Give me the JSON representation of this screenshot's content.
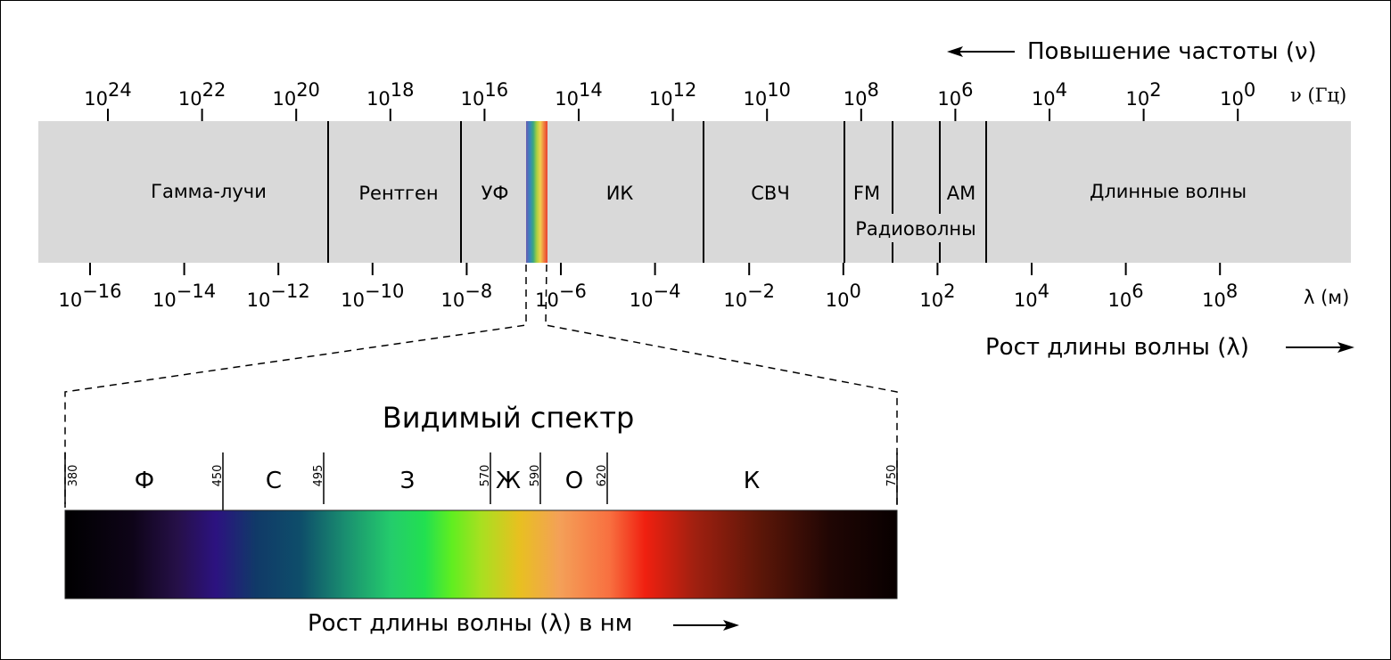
{
  "frequency_header": "Повышение частоты (ν)",
  "frequency_unit": "ν (Гц)",
  "frequency_exponents": [
    "24",
    "22",
    "20",
    "18",
    "16",
    "14",
    "12",
    "10",
    "8",
    "6",
    "4",
    "2",
    "0"
  ],
  "wavelength_exponents": [
    "−16",
    "−14",
    "−12",
    "−10",
    "−8",
    "−6",
    "−4",
    "−2",
    "0",
    "2",
    "4",
    "6",
    "8"
  ],
  "tick_base": "10",
  "wavelength_unit": "λ (м)",
  "wavelength_footer": "Рост длины волны (λ)",
  "bands": {
    "gamma": "Гамма-лучи",
    "xray": "Рентген",
    "uv": "УФ",
    "ir": "ИК",
    "microwave": "СВЧ",
    "fm": "FM",
    "am": "AM",
    "long": "Длинные волны",
    "radio": "Радиоволны"
  },
  "visible": {
    "title": "Видимый спектр",
    "boundaries": [
      "380",
      "450",
      "495",
      "570",
      "590",
      "620",
      "750"
    ],
    "colors": [
      "Ф",
      "С",
      "З",
      "Ж",
      "О",
      "К"
    ],
    "footer": "Рост длины волны (λ) в нм",
    "gradient": [
      {
        "nm": 380,
        "color": "#000000"
      },
      {
        "nm": 410,
        "color": "#0e0418"
      },
      {
        "nm": 430,
        "color": "#261048"
      },
      {
        "nm": 447,
        "color": "#2c1280"
      },
      {
        "nm": 465,
        "color": "#103a68"
      },
      {
        "nm": 485,
        "color": "#0e4e6a"
      },
      {
        "nm": 505,
        "color": "#1a9070"
      },
      {
        "nm": 525,
        "color": "#24cc6c"
      },
      {
        "nm": 540,
        "color": "#22e050"
      },
      {
        "nm": 552,
        "color": "#60ee20"
      },
      {
        "nm": 565,
        "color": "#a8e020"
      },
      {
        "nm": 582,
        "color": "#e8c020"
      },
      {
        "nm": 600,
        "color": "#f4a058"
      },
      {
        "nm": 622,
        "color": "#f87040"
      },
      {
        "nm": 638,
        "color": "#f02010"
      },
      {
        "nm": 660,
        "color": "#a02010"
      },
      {
        "nm": 690,
        "color": "#5a1608"
      },
      {
        "nm": 720,
        "color": "#200604"
      },
      {
        "nm": 750,
        "color": "#080000"
      }
    ]
  },
  "colors": {
    "band_fill": "#d9d9d9",
    "rainbow": [
      "#6a5bb0",
      "#3a82c0",
      "#3aa880",
      "#a8d040",
      "#f0d050",
      "#f08040",
      "#e84030"
    ]
  }
}
